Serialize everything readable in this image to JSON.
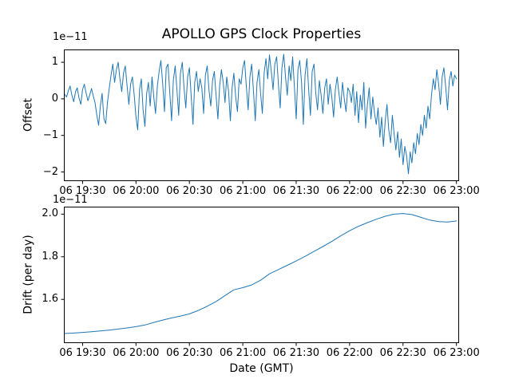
{
  "figure": {
    "title": "APOLLO GPS Clock Properties",
    "background_color": "#ffffff",
    "line_color": "#1f77b4",
    "axis_color": "#000000",
    "text_color": "#000000"
  },
  "chart_data": [
    {
      "type": "line",
      "name": "offset",
      "title": "APOLLO GPS Clock Properties",
      "ylabel": "Offset",
      "y_scale_label": "1e−11",
      "y_unit_multiplier": "1e-11",
      "grid": false,
      "legend": "none",
      "x_start_time": "06 19:20",
      "x_step_minutes": 1,
      "xlim_minutes": [
        -0.5,
        221.5
      ],
      "ylim": [
        -2.25,
        1.35
      ],
      "x_tick_minutes": [
        10,
        40,
        70,
        100,
        130,
        160,
        190,
        220
      ],
      "x_tick_labels": [
        "06 19:30",
        "06 20:00",
        "06 20:30",
        "06 21:00",
        "06 21:30",
        "06 22:00",
        "06 22:30",
        "06 23:00"
      ],
      "y_ticks": [
        1,
        0,
        -1,
        -2
      ],
      "y_tick_labels": [
        "1",
        "0",
        "−1",
        "−2"
      ],
      "values": [
        0.12,
        0.05,
        0.22,
        0.35,
        0.1,
        -0.08,
        0.18,
        0.3,
        0.02,
        -0.15,
        0.25,
        0.4,
        0.15,
        -0.05,
        0.1,
        0.28,
        0.08,
        -0.1,
        -0.45,
        -0.72,
        -0.2,
        0.15,
        -0.55,
        -0.68,
        -0.1,
        0.3,
        0.65,
        0.95,
        0.45,
        0.8,
        1.0,
        0.55,
        0.2,
        0.7,
        0.9,
        0.35,
        -0.15,
        0.4,
        0.6,
        0.1,
        -0.5,
        -0.85,
        0.25,
        0.55,
        -0.3,
        -0.75,
        0.15,
        0.45,
        -0.2,
        0.6,
        0.05,
        -0.4,
        0.35,
        0.75,
        1.05,
        0.4,
        -0.35,
        0.85,
        0.95,
        0.15,
        -0.6,
        0.5,
        0.9,
        0.25,
        -0.45,
        0.7,
        1.0,
        0.3,
        -0.25,
        0.6,
        0.85,
        0.1,
        -0.7,
        0.45,
        0.75,
        0.2,
        0.55,
        0.3,
        -0.4,
        0.65,
        0.9,
        0.25,
        -0.2,
        0.5,
        0.75,
        0.1,
        -0.55,
        0.35,
        0.8,
        0.45,
        -0.1,
        0.6,
        0.2,
        -0.6,
        0.3,
        0.7,
        0.05,
        -0.35,
        0.55,
        0.4,
        0.85,
        1.05,
        0.35,
        -0.3,
        0.6,
        0.95,
        0.2,
        -0.6,
        0.45,
        0.8,
        0.15,
        -0.4,
        0.7,
        1.1,
        0.55,
        1.2,
        0.75,
        0.25,
        0.95,
        1.15,
        0.4,
        -0.25,
        0.85,
        1.22,
        0.6,
        0.1,
        0.9,
        0.5,
        1.15,
        0.3,
        -0.55,
        0.8,
        1.05,
        0.45,
        -0.7,
        0.65,
        1.1,
        0.25,
        -0.45,
        0.75,
        0.95,
        0.15,
        -0.3,
        0.5,
        0.1,
        -0.4,
        0.3,
        0.55,
        -0.15,
        0.4,
        0.05,
        -0.5,
        0.25,
        0.6,
        0.15,
        -0.25,
        0.45,
        0.0,
        -0.35,
        0.3,
        0.2,
        -0.1,
        0.4,
        -0.45,
        0.2,
        -0.65,
        0.1,
        -0.3,
        0.45,
        -0.8,
        -0.15,
        0.3,
        -0.55,
        0.05,
        -0.4,
        -0.7,
        -0.25,
        -1.05,
        -0.5,
        -1.3,
        -0.6,
        -0.15,
        -0.85,
        -1.2,
        -0.45,
        -0.95,
        -1.4,
        -0.9,
        -1.6,
        -1.1,
        -1.8,
        -1.3,
        -1.55,
        -2.05,
        -1.45,
        -1.75,
        -1.2,
        -1.5,
        -0.95,
        -1.25,
        -0.7,
        -1.0,
        -0.45,
        -0.8,
        -0.2,
        -0.55,
        0.1,
        0.55,
        0.25,
        0.8,
        0.4,
        -0.15,
        0.6,
        0.85,
        0.3,
        -0.3,
        0.5,
        0.75,
        0.35,
        0.65,
        0.55
      ]
    },
    {
      "type": "line",
      "name": "drift",
      "ylabel": "Drift (per day)",
      "xlabel": "Date (GMT)",
      "y_scale_label": "1e−11",
      "y_unit_multiplier": "1e-11",
      "grid": false,
      "legend": "none",
      "x_start_time": "06 19:20",
      "x_step_minutes": 5,
      "xlim_minutes": [
        -0.5,
        221.5
      ],
      "ylim": [
        1.395,
        2.035
      ],
      "x_tick_minutes": [
        10,
        40,
        70,
        100,
        130,
        160,
        190,
        220
      ],
      "x_tick_labels": [
        "06 19:30",
        "06 20:00",
        "06 20:30",
        "06 21:00",
        "06 21:30",
        "06 22:00",
        "06 22:30",
        "06 23:00"
      ],
      "y_ticks": [
        2.0,
        1.8,
        1.6
      ],
      "y_tick_labels": [
        "2.0",
        "1.8",
        "1.6"
      ],
      "values": [
        1.44,
        1.442,
        1.445,
        1.448,
        1.452,
        1.456,
        1.461,
        1.466,
        1.472,
        1.48,
        1.492,
        1.503,
        1.513,
        1.522,
        1.532,
        1.548,
        1.568,
        1.59,
        1.618,
        1.645,
        1.655,
        1.668,
        1.69,
        1.72,
        1.74,
        1.76,
        1.78,
        1.802,
        1.825,
        1.848,
        1.872,
        1.898,
        1.922,
        1.943,
        1.96,
        1.976,
        1.99,
        2.0,
        2.003,
        1.998,
        1.985,
        1.972,
        1.965,
        1.963,
        1.968
      ]
    }
  ]
}
